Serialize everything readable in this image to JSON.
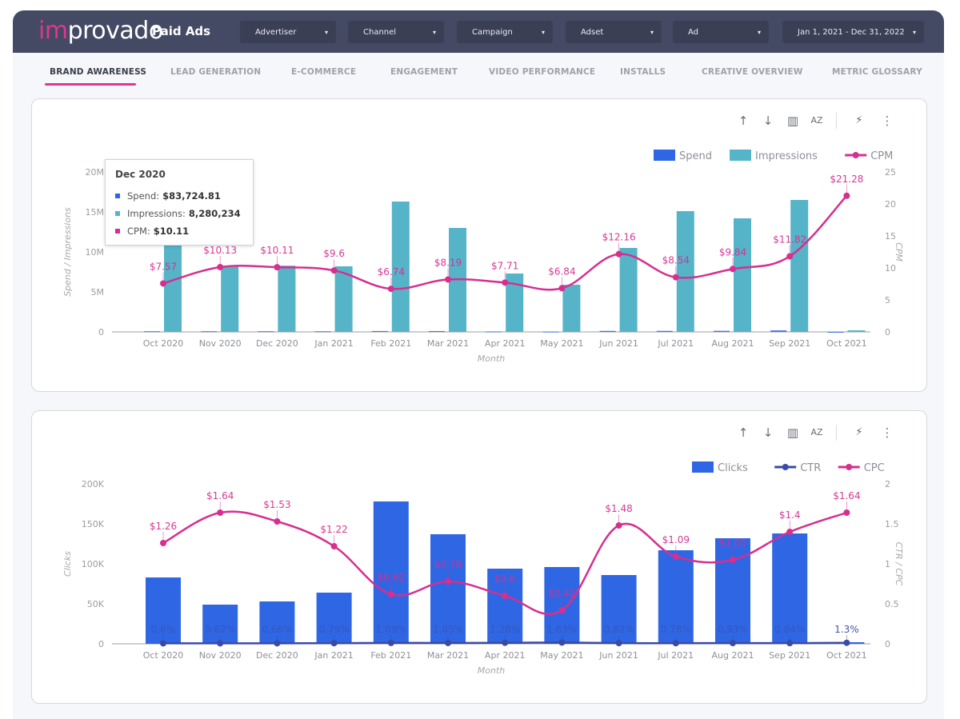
{
  "header": {
    "logo_prefix": "im",
    "logo_suffix": "provado",
    "title": "Paid Ads",
    "filters": [
      {
        "label": "Advertiser"
      },
      {
        "label": "Channel"
      },
      {
        "label": "Campaign"
      },
      {
        "label": "Adset"
      },
      {
        "label": "Ad"
      },
      {
        "label": "Jan 1, 2021 - Dec 31, 2022"
      }
    ],
    "caret": "▾"
  },
  "tabs": [
    {
      "label": "BRAND AWARENESS",
      "active": true
    },
    {
      "label": "LEAD GENERATION"
    },
    {
      "label": "E-COMMERCE"
    },
    {
      "label": "ENGAGEMENT"
    },
    {
      "label": "VIDEO PERFORMANCE"
    },
    {
      "label": "INSTALLS"
    },
    {
      "label": "CREATIVE OVERVIEW"
    },
    {
      "label": "METRIC GLOSSARY"
    }
  ],
  "toolbar_icons": [
    "sort-ascending-icon",
    "sort-descending-icon",
    "chart-settings-icon",
    "sort-az-icon",
    "lightning-icon",
    "more-vertical-icon"
  ],
  "colors": {
    "spend": "#2f66e3",
    "impressions": "#55b4c8",
    "cpm": "#d62f8f",
    "clicks": "#2f66e3",
    "ctr": "#3a4aa6",
    "cpc": "#d62f8f",
    "accent": "#e0368e",
    "topbar": "#444a63"
  },
  "tooltip": {
    "title": "Dec 2020",
    "rows": [
      {
        "label": "Spend:",
        "value": "$83,724.81"
      },
      {
        "label": "Impressions:",
        "value": "8,280,234"
      },
      {
        "label": "CPM:",
        "value": "$10.11"
      }
    ]
  },
  "chart_data": [
    {
      "type": "bar+line",
      "title": "",
      "xlabel": "Month",
      "ylabel": "Spend / Impressions",
      "y2label": "CPM",
      "categories": [
        "Oct 2020",
        "Nov 2020",
        "Dec 2020",
        "Jan 2021",
        "Feb 2021",
        "Mar 2021",
        "Apr 2021",
        "May 2021",
        "Jun 2021",
        "Jul 2021",
        "Aug 2021",
        "Sep 2021",
        "Oct 2021"
      ],
      "ylim": [
        0,
        20000000
      ],
      "yticks": [
        "0",
        "5M",
        "10M",
        "15M",
        "20M"
      ],
      "y2lim": [
        0,
        25
      ],
      "y2ticks": [
        "0",
        "5",
        "10",
        "15",
        "20",
        "25"
      ],
      "legend": [
        "Spend",
        "Impressions",
        "CPM"
      ],
      "legend_position": "top-right",
      "series": [
        {
          "name": "Spend",
          "type": "bar",
          "values": [
            84000,
            83000,
            83724.81,
            79000,
            110000,
            107000,
            56000,
            40000,
            128000,
            129000,
            140000,
            196000,
            4000
          ]
        },
        {
          "name": "Impressions",
          "type": "bar",
          "values": [
            11100000,
            8200000,
            8280234,
            8200000,
            16300000,
            13000000,
            7300000,
            5900000,
            10500000,
            15100000,
            14200000,
            16500000,
            200000
          ]
        },
        {
          "name": "CPM",
          "type": "line",
          "axis": "right",
          "values": [
            7.57,
            10.13,
            10.11,
            9.6,
            6.74,
            8.19,
            7.71,
            6.84,
            12.16,
            8.54,
            9.84,
            11.82,
            21.28
          ],
          "labels": [
            "$7.57",
            "$10.13",
            "$10.11",
            "$9.6",
            "$6.74",
            "$8.19",
            "$7.71",
            "$6.84",
            "$12.16",
            "$8.54",
            "$9.84",
            "$11.82",
            "$21.28"
          ]
        }
      ]
    },
    {
      "type": "bar+line",
      "title": "",
      "xlabel": "Month",
      "ylabel": "Clicks",
      "y2label": "CTR / CPC",
      "categories": [
        "Oct 2020",
        "Nov 2020",
        "Dec 2020",
        "Jan 2021",
        "Feb 2021",
        "Mar 2021",
        "Apr 2021",
        "May 2021",
        "Jun 2021",
        "Jul 2021",
        "Aug 2021",
        "Sep 2021",
        "Oct 2021"
      ],
      "ylim": [
        0,
        200000
      ],
      "yticks": [
        "0",
        "50K",
        "100K",
        "150K",
        "200K"
      ],
      "y2lim": [
        0,
        2
      ],
      "y2ticks": [
        "0",
        "0.5",
        "1",
        "1.5",
        "2"
      ],
      "legend": [
        "Clicks",
        "CTR",
        "CPC"
      ],
      "legend_position": "top-right",
      "series": [
        {
          "name": "Clicks",
          "type": "bar",
          "values": [
            83000,
            49000,
            53000,
            64000,
            178000,
            137000,
            94000,
            96000,
            86000,
            117000,
            132000,
            138000,
            2000
          ]
        },
        {
          "name": "CTR",
          "type": "line",
          "axis": "right",
          "values": [
            0.006,
            0.0062,
            0.0066,
            0.0079,
            0.0109,
            0.0105,
            0.0128,
            0.0163,
            0.0082,
            0.0078,
            0.0093,
            0.0084,
            0.013
          ],
          "labels": [
            "0.6%",
            "0.62%",
            "0.66%",
            "0.79%",
            "1.09%",
            "1.05%",
            "1.28%",
            "1.63%",
            "0.82%",
            "0.78%",
            "0.93%",
            "0.84%",
            "1.3%"
          ]
        },
        {
          "name": "CPC",
          "type": "line",
          "axis": "right",
          "values": [
            1.26,
            1.64,
            1.53,
            1.22,
            0.62,
            0.78,
            0.6,
            0.42,
            1.48,
            1.09,
            1.05,
            1.4,
            1.64
          ],
          "labels": [
            "$1.26",
            "$1.64",
            "$1.53",
            "$1.22",
            "$0.62",
            "$0.78",
            "$0.6",
            "$0.42",
            "$1.48",
            "$1.09",
            "$1.05",
            "$1.4",
            "$1.64"
          ]
        }
      ]
    }
  ]
}
